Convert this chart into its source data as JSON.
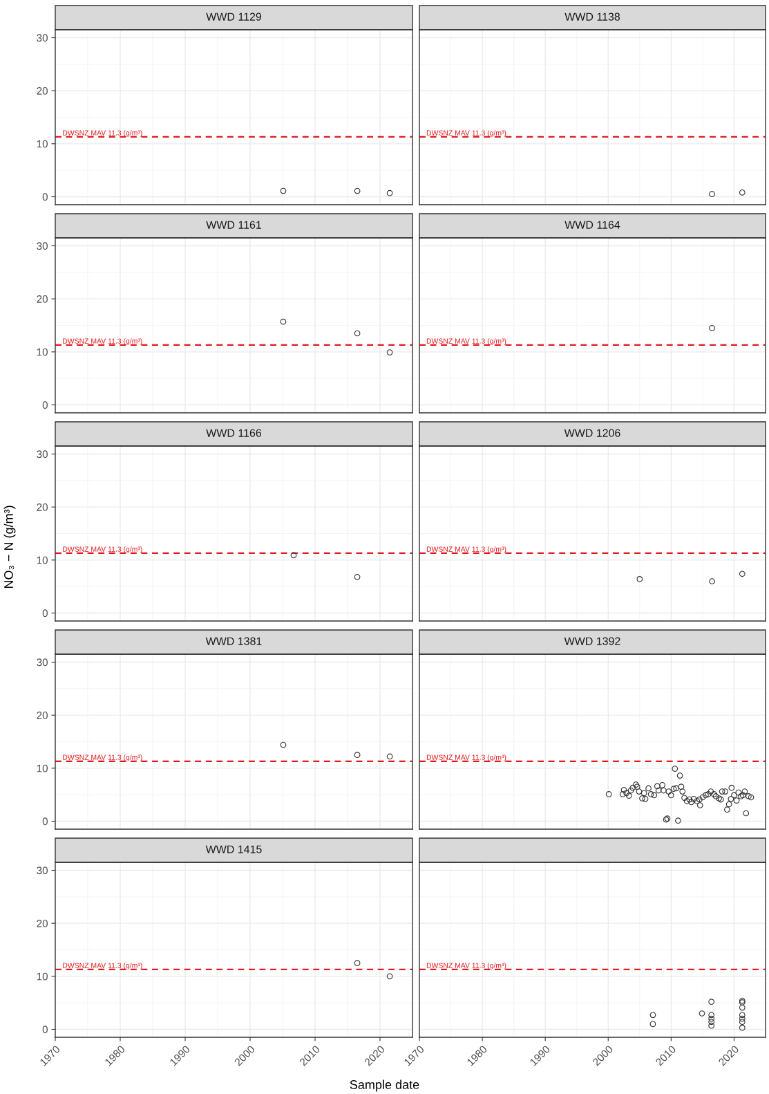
{
  "chart_data": [
    {
      "type": "scatter",
      "title": "WWD 1129",
      "x": [
        2005.1,
        2016.5,
        2021.5
      ],
      "values": [
        1.1,
        1.1,
        0.7
      ],
      "color": "#333333",
      "marker": "circle",
      "xlim": [
        1970,
        2025
      ],
      "ylim": [
        -1.5,
        31.5
      ],
      "xticks": [
        1970,
        1980,
        1990,
        2000,
        2010,
        2020
      ],
      "yticks": [
        0,
        10,
        20,
        30
      ],
      "grid": true,
      "tick_labels": "y",
      "ref_lines": [
        {
          "axis": "y",
          "value": 11.3,
          "label": "DWSNZ MAV 11.3 (g/m³)",
          "color": "#e31a1c",
          "line_style": "dashed"
        }
      ]
    },
    {
      "type": "scatter",
      "title": "WWD 1138",
      "x": [
        2016.5,
        2021.3
      ],
      "values": [
        0.5,
        0.8
      ],
      "color": "#333333",
      "marker": "circle",
      "xlim": [
        1970,
        2025
      ],
      "ylim": [
        -1.5,
        31.5
      ],
      "xticks": [
        1970,
        1980,
        1990,
        2000,
        2010,
        2020
      ],
      "yticks": [
        0,
        10,
        20,
        30
      ],
      "grid": true,
      "tick_labels": false,
      "ref_lines": [
        {
          "axis": "y",
          "value": 11.3,
          "label": "DWSNZ MAV 11.3 (g/m³)",
          "color": "#e31a1c",
          "line_style": "dashed"
        }
      ]
    },
    {
      "type": "scatter",
      "title": "WWD 1161",
      "x": [
        2005.1,
        2016.5,
        2021.5
      ],
      "values": [
        15.7,
        13.5,
        9.9
      ],
      "color": "#333333",
      "marker": "circle",
      "xlim": [
        1970,
        2025
      ],
      "ylim": [
        -1.5,
        31.5
      ],
      "xticks": [
        1970,
        1980,
        1990,
        2000,
        2010,
        2020
      ],
      "yticks": [
        0,
        10,
        20,
        30
      ],
      "grid": true,
      "tick_labels": "y",
      "ref_lines": [
        {
          "axis": "y",
          "value": 11.3,
          "label": "DWSNZ MAV 11.3 (g/m³)",
          "color": "#e31a1c",
          "line_style": "dashed"
        }
      ]
    },
    {
      "type": "scatter",
      "title": "WWD 1164",
      "x": [
        2016.5
      ],
      "values": [
        14.5
      ],
      "color": "#333333",
      "marker": "circle",
      "xlim": [
        1970,
        2025
      ],
      "ylim": [
        -1.5,
        31.5
      ],
      "xticks": [
        1970,
        1980,
        1990,
        2000,
        2010,
        2020
      ],
      "yticks": [
        0,
        10,
        20,
        30
      ],
      "grid": true,
      "tick_labels": false,
      "ref_lines": [
        {
          "axis": "y",
          "value": 11.3,
          "label": "DWSNZ MAV 11.3 (g/m³)",
          "color": "#e31a1c",
          "line_style": "dashed"
        }
      ]
    },
    {
      "type": "scatter",
      "title": "WWD 1166",
      "ylabel": "NO₃ − N (g/m³)",
      "x": [
        2006.7,
        2016.5
      ],
      "values": [
        10.9,
        6.8
      ],
      "color": "#333333",
      "marker": "circle",
      "xlim": [
        1970,
        2025
      ],
      "ylim": [
        -1.5,
        31.5
      ],
      "xticks": [
        1970,
        1980,
        1990,
        2000,
        2010,
        2020
      ],
      "yticks": [
        0,
        10,
        20,
        30
      ],
      "grid": true,
      "tick_labels": "y",
      "ref_lines": [
        {
          "axis": "y",
          "value": 11.3,
          "label": "DWSNZ MAV 11.3 (g/m³)",
          "color": "#e31a1c",
          "line_style": "dashed"
        }
      ]
    },
    {
      "type": "scatter",
      "title": "WWD 1206",
      "x": [
        2005.0,
        2016.5,
        2021.3
      ],
      "values": [
        6.4,
        6.0,
        7.4
      ],
      "color": "#333333",
      "marker": "circle",
      "xlim": [
        1970,
        2025
      ],
      "ylim": [
        -1.5,
        31.5
      ],
      "xticks": [
        1970,
        1980,
        1990,
        2000,
        2010,
        2020
      ],
      "yticks": [
        0,
        10,
        20,
        30
      ],
      "grid": true,
      "tick_labels": false,
      "ref_lines": [
        {
          "axis": "y",
          "value": 11.3,
          "label": "DWSNZ MAV 11.3 (g/m³)",
          "color": "#e31a1c",
          "line_style": "dashed"
        }
      ]
    },
    {
      "type": "scatter",
      "title": "WWD 1381",
      "x": [
        2005.1,
        2016.5,
        2021.5
      ],
      "values": [
        14.4,
        12.5,
        12.2
      ],
      "color": "#333333",
      "marker": "circle",
      "xlim": [
        1970,
        2025
      ],
      "ylim": [
        -1.5,
        31.5
      ],
      "xticks": [
        1970,
        1980,
        1990,
        2000,
        2010,
        2020
      ],
      "yticks": [
        0,
        10,
        20,
        30
      ],
      "grid": true,
      "tick_labels": "y",
      "ref_lines": [
        {
          "axis": "y",
          "value": 11.3,
          "label": "DWSNZ MAV 11.3 (g/m³)",
          "color": "#e31a1c",
          "line_style": "dashed"
        }
      ]
    },
    {
      "type": "scatter",
      "title": "WWD 1392",
      "x": [
        2000.1,
        2002.3,
        2002.5,
        2002.9,
        2003.3,
        2003.6,
        2003.9,
        2004.4,
        2004.6,
        2004.9,
        2005.4,
        2005.7,
        2005.9,
        2006.4,
        2006.8,
        2007.3,
        2007.8,
        2008.0,
        2008.6,
        2008.8,
        2009.2,
        2009.4,
        2009.6,
        2010.0,
        2010.4,
        2010.6,
        2010.8,
        2011.1,
        2011.4,
        2011.6,
        2011.8,
        2012.1,
        2012.5,
        2012.9,
        2013.2,
        2013.6,
        2014.1,
        2014.5,
        2014.6,
        2015.0,
        2015.5,
        2015.9,
        2016.3,
        2016.8,
        2017.1,
        2017.6,
        2017.9,
        2018.1,
        2018.6,
        2018.9,
        2019.2,
        2019.5,
        2019.6,
        2020.0,
        2020.4,
        2020.7,
        2021.1,
        2021.4,
        2021.7,
        2021.9,
        2022.3,
        2022.7
      ],
      "values": [
        5.1,
        5.1,
        5.9,
        5.3,
        4.8,
        5.8,
        6.3,
        6.9,
        6.5,
        5.6,
        4.3,
        5.3,
        4.2,
        6.2,
        5.1,
        4.9,
        6.6,
        5.8,
        6.8,
        5.8,
        0.3,
        0.5,
        5.6,
        4.9,
        6.1,
        9.9,
        6.2,
        0.1,
        8.6,
        6.5,
        5.6,
        4.4,
        3.8,
        4.1,
        3.6,
        4.2,
        3.8,
        4.1,
        3.0,
        4.5,
        4.9,
        5.1,
        5.6,
        5.1,
        4.7,
        4.3,
        4.1,
        5.6,
        5.6,
        2.2,
        3.2,
        4.2,
        6.3,
        4.9,
        3.9,
        5.4,
        4.7,
        4.9,
        5.6,
        1.5,
        4.7,
        4.5
      ],
      "color": "#333333",
      "marker": "circle",
      "xlim": [
        1970,
        2025
      ],
      "ylim": [
        -1.5,
        31.5
      ],
      "xticks": [
        1970,
        1980,
        1990,
        2000,
        2010,
        2020
      ],
      "yticks": [
        0,
        10,
        20,
        30
      ],
      "grid": true,
      "tick_labels": false,
      "ref_lines": [
        {
          "axis": "y",
          "value": 11.3,
          "label": "DWSNZ MAV 11.3 (g/m³)",
          "color": "#e31a1c",
          "line_style": "dashed"
        }
      ]
    },
    {
      "type": "scatter",
      "title": "WWD 1415",
      "xlabel": "Sample date",
      "x": [
        2016.5,
        2021.5
      ],
      "values": [
        12.5,
        10.0
      ],
      "color": "#333333",
      "marker": "circle",
      "xlim": [
        1970,
        2025
      ],
      "ylim": [
        -1.5,
        31.5
      ],
      "xticks": [
        1970,
        1980,
        1990,
        2000,
        2010,
        2020
      ],
      "yticks": [
        0,
        10,
        20,
        30
      ],
      "grid": true,
      "ref_lines": [
        {
          "axis": "y",
          "value": 11.3,
          "label": "DWSNZ MAV 11.3 (g/m³)",
          "color": "#e31a1c",
          "line_style": "dashed"
        }
      ]
    },
    {
      "type": "scatter",
      "x": [
        2007.1,
        2007.1,
        2014.9,
        2016.4,
        2016.4,
        2016.4,
        2016.4,
        2016.4,
        2021.3,
        2021.3,
        2021.3,
        2021.3,
        2021.3,
        2021.3,
        2021.3
      ],
      "values": [
        2.7,
        1.0,
        3.0,
        5.2,
        2.7,
        2.0,
        1.4,
        0.7,
        5.4,
        5.1,
        4.1,
        2.7,
        2.0,
        1.4,
        0.3
      ],
      "color": "#333333",
      "marker": "circle",
      "xlim": [
        1970,
        2025
      ],
      "ylim": [
        -1.5,
        31.5
      ],
      "xticks": [
        1970,
        1980,
        1990,
        2000,
        2010,
        2020
      ],
      "yticks": [
        0,
        10,
        20,
        30
      ],
      "grid": true,
      "tick_labels": "x",
      "ref_lines": [
        {
          "axis": "y",
          "value": 11.3,
          "label": "DWSNZ MAV 11.3 (g/m³)",
          "color": "#e31a1c",
          "line_style": "dashed"
        }
      ]
    }
  ]
}
